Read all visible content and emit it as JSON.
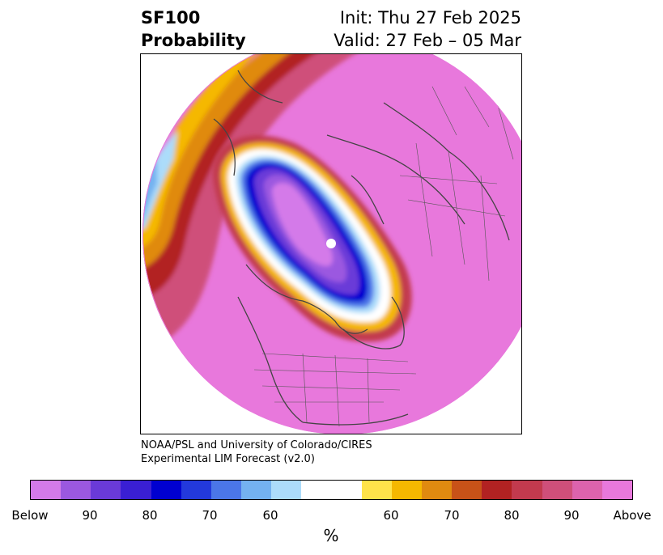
{
  "header": {
    "title_line1": "SF100",
    "title_line2": "Probability",
    "init": "Init: Thu 27 Feb 2025",
    "valid": "Valid: 27 Feb – 05 Mar"
  },
  "credit": {
    "line1": "NOAA/PSL and University of Colorado/CIRES",
    "line2": "Experimental LIM Forecast (v2.0)"
  },
  "colorbar": {
    "tick_labels": [
      "Below",
      "90",
      "80",
      "70",
      "60",
      "60",
      "70",
      "80",
      "90",
      "Above"
    ],
    "unit": "%",
    "colors": [
      "#d47ae9",
      "#9b58e0",
      "#6a3ad8",
      "#3a1fd3",
      "#0000d0",
      "#2339dc",
      "#4b76e8",
      "#74b2f0",
      "#acdcfa",
      "#ffffff",
      "#ffe34a",
      "#f5b800",
      "#e08a10",
      "#c85218",
      "#b22222",
      "#c23a4e",
      "#cf4f7a",
      "#dd63ad",
      "#e878dc"
    ]
  },
  "map": {
    "projection": "polar stereographic, North Pole",
    "background_category": "Above",
    "anomaly_center": "Below (Canadian Arctic / Greenland)"
  }
}
